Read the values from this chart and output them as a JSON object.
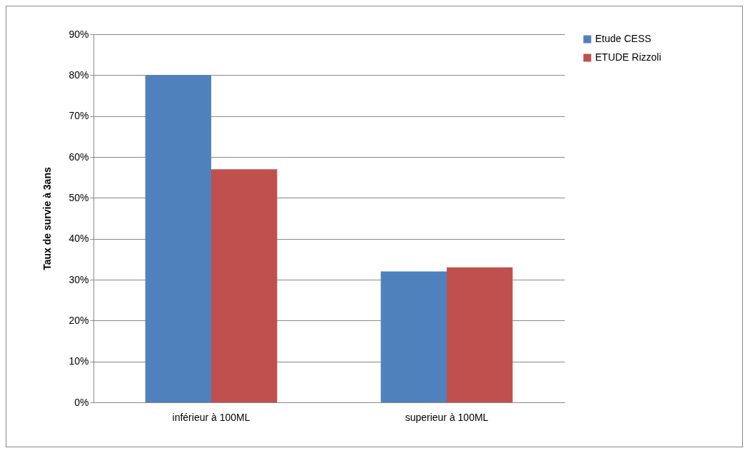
{
  "chart_data": {
    "type": "bar",
    "ylabel": "Taux de survie à 3ans",
    "categories": [
      "inférieur à 100ML",
      "superieur à 100ML"
    ],
    "series": [
      {
        "name": "Etude CESS",
        "color": "#4f81bd",
        "values": [
          80,
          32
        ]
      },
      {
        "name": "ETUDE Rizzoli",
        "color": "#c0504d",
        "values": [
          57,
          33
        ]
      }
    ],
    "ylim": [
      0,
      90
    ],
    "yticks": [
      {
        "value": 0,
        "label": "0%"
      },
      {
        "value": 10,
        "label": "10%"
      },
      {
        "value": 20,
        "label": "20%"
      },
      {
        "value": 30,
        "label": "30%"
      },
      {
        "value": 40,
        "label": "40%"
      },
      {
        "value": 50,
        "label": "50%"
      },
      {
        "value": 60,
        "label": "60%"
      },
      {
        "value": 70,
        "label": "70%"
      },
      {
        "value": 80,
        "label": "80%"
      },
      {
        "value": 90,
        "label": "90%"
      }
    ],
    "grid": "y",
    "legend": "right"
  }
}
